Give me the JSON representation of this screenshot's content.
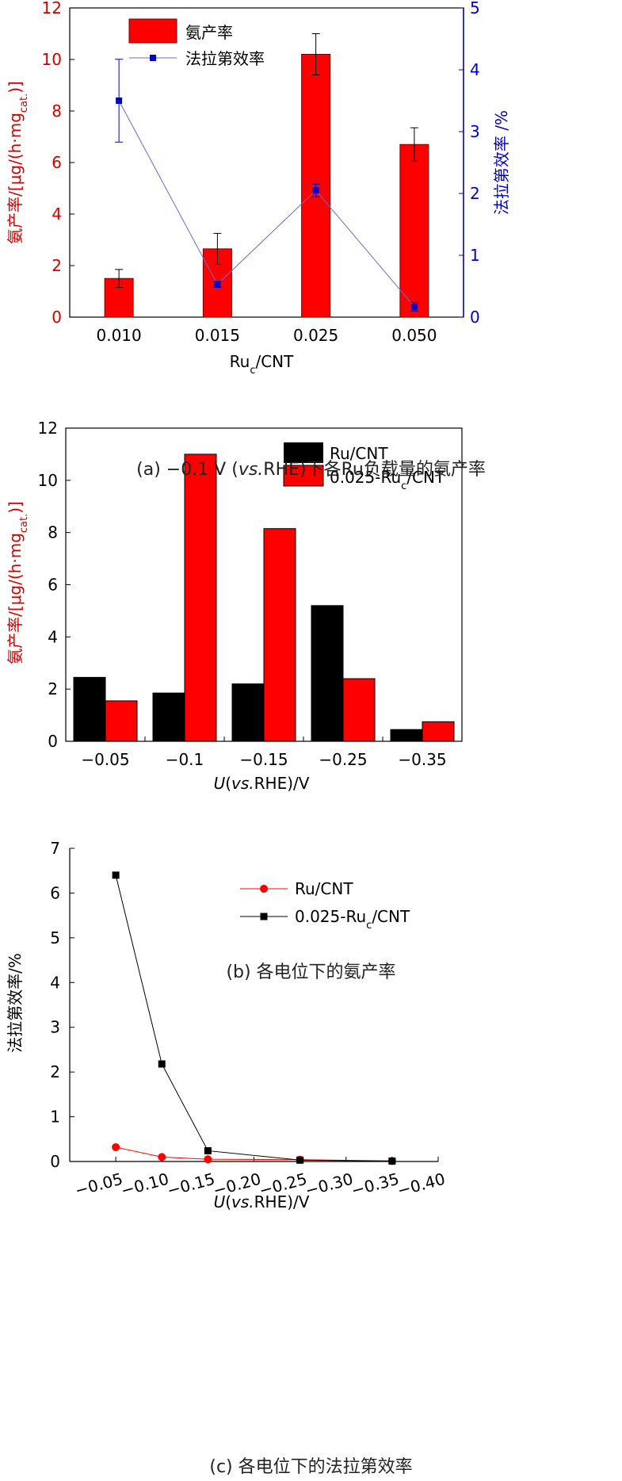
{
  "chart_data": [
    {
      "type": "bar",
      "categories": [
        "0.010",
        "0.015",
        "0.025",
        "0.050"
      ],
      "series": [
        {
          "name": "氨产率",
          "axis": "left",
          "kind": "bar",
          "color": "#ff0000",
          "values": [
            1.5,
            2.65,
            10.2,
            6.7
          ],
          "errors": [
            0.35,
            0.6,
            0.8,
            0.65
          ]
        },
        {
          "name": "法拉第效率",
          "axis": "right",
          "kind": "line",
          "color": "#0000cc",
          "values": [
            3.5,
            0.53,
            2.05,
            0.17
          ],
          "errors": [
            0.67,
            0.05,
            0.1,
            0.07
          ]
        }
      ],
      "yticks_left": [
        "0",
        "2",
        "4",
        "6",
        "8",
        "10",
        "12"
      ],
      "yticks_right": [
        "0",
        "1",
        "2",
        "3",
        "4",
        "5"
      ],
      "ylim_left": [
        0,
        12
      ],
      "ylim_right": [
        0,
        5
      ],
      "xlabel": {
        "main": "Ru",
        "sub": "c",
        "rest": "/CNT"
      },
      "ylabel_left": {
        "pre": "氨产率/[μg/(h·mg",
        "sub": "cat.",
        "post": ")]"
      },
      "ylabel_right": "法拉第效率 /%",
      "caption": "(a) −0.1 V (vs.RHE)下各Ru负载量的氨产率",
      "caption_parts": {
        "a": "(a)  −0.1 V (",
        "b": "vs.",
        "c": "RHE)下各Ru负载量的氨产率"
      },
      "legend_position": "top-left"
    },
    {
      "type": "bar",
      "categories": [
        "−0.05",
        "−0.1",
        "−0.15",
        "−0.25",
        "−0.35"
      ],
      "series": [
        {
          "name": "Ru/CNT",
          "color": "#000000",
          "values": [
            2.45,
            1.85,
            2.2,
            5.2,
            0.45
          ]
        },
        {
          "name": "0.025-Ru",
          "name_sub": "c",
          "name_rest": "/CNT",
          "color": "#ff0000",
          "values": [
            1.55,
            11.0,
            8.15,
            2.4,
            0.75
          ]
        }
      ],
      "yticks": [
        "0",
        "2",
        "4",
        "6",
        "8",
        "10",
        "12"
      ],
      "ylim": [
        0,
        12
      ],
      "xlabel": {
        "italic": "U",
        "a": "(",
        "italic2": "vs.",
        "b": "RHE)/V"
      },
      "ylabel": {
        "pre": "氨产率/[μg/(h·mg",
        "sub": "cat.",
        "post": ")]"
      },
      "caption": "(b) 各电位下的氨产率",
      "legend_position": "top-right"
    },
    {
      "type": "line",
      "x": [
        -0.05,
        -0.1,
        -0.15,
        -0.25,
        -0.35
      ],
      "series": [
        {
          "name": "Ru/CNT",
          "color": "#ff0000",
          "marker": "circle",
          "values": [
            0.32,
            0.1,
            0.05,
            0.04,
            0.01
          ]
        },
        {
          "name": "0.025-Ru",
          "name_sub": "c",
          "name_rest": "/CNT",
          "color": "#000000",
          "marker": "square",
          "values": [
            6.4,
            2.18,
            0.24,
            0.03,
            0.01
          ]
        }
      ],
      "xticks": [
        "−0.05",
        "−0.10",
        "−0.15",
        "−0.20",
        "−0.25",
        "−0.30",
        "−0.35",
        "−0.40"
      ],
      "yticks": [
        "0",
        "1",
        "2",
        "3",
        "4",
        "5",
        "6",
        "7"
      ],
      "ylim": [
        0,
        7
      ],
      "xlim": [
        -0.0,
        -0.4
      ],
      "xlabel": {
        "italic": "U",
        "a": "(",
        "italic2": "vs.",
        "b": "RHE)/V"
      },
      "ylabel": "法拉第效率/%",
      "caption": "(c) 各电位下的法拉第效率",
      "legend_position": "top-right"
    }
  ]
}
